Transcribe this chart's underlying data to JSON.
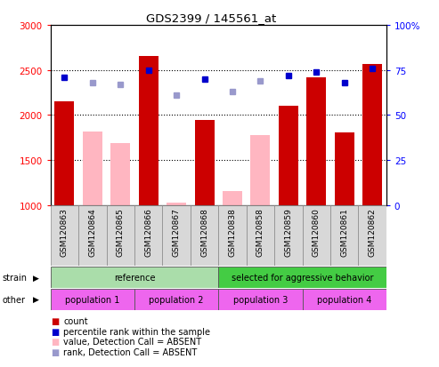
{
  "title": "GDS2399 / 145561_at",
  "samples": [
    "GSM120863",
    "GSM120864",
    "GSM120865",
    "GSM120866",
    "GSM120867",
    "GSM120868",
    "GSM120838",
    "GSM120858",
    "GSM120859",
    "GSM120860",
    "GSM120861",
    "GSM120862"
  ],
  "bar_values": [
    2150,
    null,
    null,
    2650,
    null,
    1940,
    null,
    null,
    2100,
    2420,
    1810,
    2570
  ],
  "bar_absent_values": [
    null,
    1820,
    1690,
    null,
    1030,
    null,
    1160,
    1775,
    null,
    null,
    null,
    null
  ],
  "rank_values": [
    71,
    null,
    null,
    75,
    null,
    70,
    null,
    null,
    72,
    74,
    68,
    76
  ],
  "rank_absent_values": [
    null,
    68,
    67,
    null,
    61,
    null,
    63,
    69,
    null,
    null,
    null,
    null
  ],
  "strain_groups": [
    {
      "label": "reference",
      "start": 0,
      "end": 5,
      "color": "#aaddaa"
    },
    {
      "label": "selected for aggressive behavior",
      "start": 6,
      "end": 11,
      "color": "#44cc44"
    }
  ],
  "other_groups": [
    {
      "label": "population 1",
      "start": 0,
      "end": 2,
      "color": "#ee66ee"
    },
    {
      "label": "population 2",
      "start": 3,
      "end": 5,
      "color": "#ee66ee"
    },
    {
      "label": "population 3",
      "start": 6,
      "end": 8,
      "color": "#ee66ee"
    },
    {
      "label": "population 4",
      "start": 9,
      "end": 11,
      "color": "#ee66ee"
    }
  ],
  "ylim_left": [
    1000,
    3000
  ],
  "ylim_right": [
    0,
    100
  ],
  "yticks_left": [
    1000,
    1500,
    2000,
    2500,
    3000
  ],
  "yticks_right": [
    0,
    25,
    50,
    75,
    100
  ],
  "bar_color_present": "#CC0000",
  "bar_color_absent": "#FFB6C1",
  "dot_color_present": "#0000CC",
  "dot_color_absent": "#9999CC",
  "legend_items": [
    {
      "label": "count",
      "color": "#CC0000"
    },
    {
      "label": "percentile rank within the sample",
      "color": "#0000CC"
    },
    {
      "label": "value, Detection Call = ABSENT",
      "color": "#FFB6C1"
    },
    {
      "label": "rank, Detection Call = ABSENT",
      "color": "#9999CC"
    }
  ],
  "grid_lines": [
    1500,
    2000,
    2500
  ],
  "bg_color": "#ffffff",
  "xtick_bg": "#d8d8d8"
}
